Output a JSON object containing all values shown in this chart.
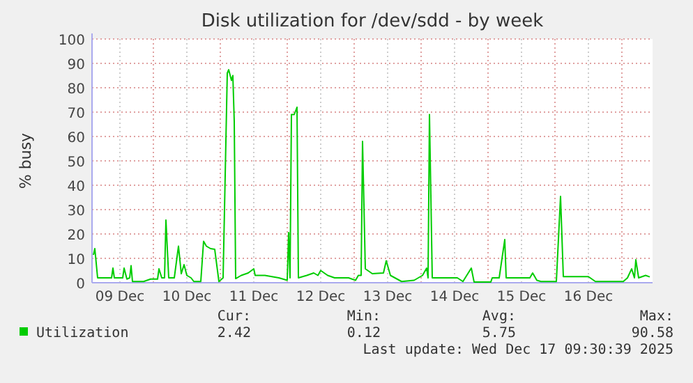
{
  "chart_data": {
    "type": "line",
    "title": "Disk utilization for /dev/sdd - by week",
    "ylabel": "% busy",
    "xlim": [
      "2025-12-09T02:00",
      "2025-12-17T11:00"
    ],
    "xticks": [
      {
        "value": "2025-12-10T00:00",
        "label": null
      },
      {
        "value": "2025-12-11T00:00",
        "label": null
      },
      {
        "value": "2025-12-12T00:00",
        "label": null
      },
      {
        "value": "2025-12-13T00:00",
        "label": null
      },
      {
        "value": "2025-12-14T00:00",
        "label": null
      },
      {
        "value": "2025-12-15T00:00",
        "label": null
      },
      {
        "value": "2025-12-16T00:00",
        "label": null
      },
      {
        "value": "2025-12-17T00:00",
        "label": null
      },
      {
        "value": "2025-12-09T12:00",
        "label": "09 Dec"
      },
      {
        "value": "2025-12-10T12:00",
        "label": "10 Dec"
      },
      {
        "value": "2025-12-11T12:00",
        "label": "11 Dec"
      },
      {
        "value": "2025-12-12T12:00",
        "label": "12 Dec"
      },
      {
        "value": "2025-12-13T12:00",
        "label": "13 Dec"
      },
      {
        "value": "2025-12-14T12:00",
        "label": "14 Dec"
      },
      {
        "value": "2025-12-15T12:00",
        "label": "15 Dec"
      },
      {
        "value": "2025-12-16T12:00",
        "label": "16 Dec"
      }
    ],
    "ylim": [
      0,
      100
    ],
    "yticks": [
      0,
      10,
      20,
      30,
      40,
      50,
      60,
      70,
      80,
      90,
      100
    ],
    "grid": true,
    "legend": "bottom",
    "annotations": [
      "Cur:",
      "2.42",
      "Min:",
      "0.12",
      "Avg:",
      "5.75",
      "Max:",
      "90.58",
      "Last update: Wed Dec 17 09:30:39 2025"
    ],
    "series": [
      {
        "name": "Utilization",
        "color": "#00cc00",
        "x": [
          "2025-12-09T02:30",
          "2025-12-09T03:00",
          "2025-12-09T04:00",
          "2025-12-09T09:00",
          "2025-12-09T09:30",
          "2025-12-09T10:00",
          "2025-12-09T13:00",
          "2025-12-09T13:30",
          "2025-12-09T14:30",
          "2025-12-09T15:30",
          "2025-12-09T16:00",
          "2025-12-09T16:30",
          "2025-12-09T20:30",
          "2025-12-09T23:00",
          "2025-12-10T01:30",
          "2025-12-10T02:00",
          "2025-12-10T03:00",
          "2025-12-10T04:00",
          "2025-12-10T04:30",
          "2025-12-10T05:30",
          "2025-12-10T07:30",
          "2025-12-10T09:00",
          "2025-12-10T10:00",
          "2025-12-10T11:00",
          "2025-12-10T12:00",
          "2025-12-10T13:30",
          "2025-12-10T14:30",
          "2025-12-10T17:00",
          "2025-12-10T18:00",
          "2025-12-10T19:00",
          "2025-12-10T20:30",
          "2025-12-10T22:00",
          "2025-12-10T23:30",
          "2025-12-11T01:00",
          "2025-12-11T02:30",
          "2025-12-11T03:00",
          "2025-12-11T04:00",
          "2025-12-11T04:30",
          "2025-12-11T05:00",
          "2025-12-11T05:30",
          "2025-12-11T07:30",
          "2025-12-11T10:00",
          "2025-12-11T12:00",
          "2025-12-11T12:30",
          "2025-12-11T16:00",
          "2025-12-11T21:00",
          "2025-12-12T00:00",
          "2025-12-12T00:30",
          "2025-12-12T01:00",
          "2025-12-12T01:30",
          "2025-12-12T02:30",
          "2025-12-12T03:30",
          "2025-12-12T04:00",
          "2025-12-12T07:00",
          "2025-12-12T09:30",
          "2025-12-12T11:00",
          "2025-12-12T12:00",
          "2025-12-12T14:30",
          "2025-12-12T17:00",
          "2025-12-12T22:00",
          "2025-12-13T00:30",
          "2025-12-13T01:30",
          "2025-12-13T02:30",
          "2025-12-13T03:00",
          "2025-12-13T04:00",
          "2025-12-13T06:30",
          "2025-12-13T10:30",
          "2025-12-13T11:30",
          "2025-12-13T13:00",
          "2025-12-13T17:00",
          "2025-12-13T21:30",
          "2025-12-14T00:30",
          "2025-12-14T02:00",
          "2025-12-14T02:30",
          "2025-12-14T03:00",
          "2025-12-14T04:00",
          "2025-12-14T13:00",
          "2025-12-14T15:00",
          "2025-12-14T18:00",
          "2025-12-14T19:00",
          "2025-12-15T01:00",
          "2025-12-15T01:30",
          "2025-12-15T04:00",
          "2025-12-15T06:00",
          "2025-12-15T06:30",
          "2025-12-15T15:00",
          "2025-12-15T16:00",
          "2025-12-15T17:30",
          "2025-12-15T19:00",
          "2025-12-16T00:30",
          "2025-12-16T02:00",
          "2025-12-16T03:00",
          "2025-12-16T12:00",
          "2025-12-16T14:30",
          "2025-12-17T00:30",
          "2025-12-17T02:00",
          "2025-12-17T03:30",
          "2025-12-17T04:30",
          "2025-12-17T05:00",
          "2025-12-17T06:00",
          "2025-12-17T08:30",
          "2025-12-17T10:00"
        ],
        "values": [
          11.4,
          14,
          2,
          2,
          6,
          2,
          2,
          6,
          1.5,
          2,
          7,
          0.5,
          0.5,
          1.5,
          1.5,
          5.7,
          2,
          2,
          25.7,
          2,
          2,
          15,
          3.7,
          7.4,
          3,
          2,
          0.5,
          0.5,
          17,
          15,
          14,
          13.7,
          0.5,
          2,
          86,
          87.4,
          83,
          85,
          66,
          1.7,
          3,
          4,
          5.7,
          3,
          3,
          2,
          1,
          20.6,
          2,
          69,
          69,
          72,
          2,
          3,
          4,
          3,
          5,
          3,
          2,
          2,
          1,
          3,
          3,
          58,
          5.7,
          3.7,
          4,
          9,
          3,
          0.5,
          1,
          3,
          6,
          2,
          69,
          2,
          2,
          0.5,
          6,
          0.3,
          0.3,
          2,
          2,
          17.7,
          2,
          2,
          4,
          1,
          0.5,
          0.5,
          35.4,
          2.5,
          2.5,
          0.5,
          0.5,
          2,
          5.7,
          2,
          9.4,
          2,
          3,
          2.4
        ]
      }
    ]
  }
}
